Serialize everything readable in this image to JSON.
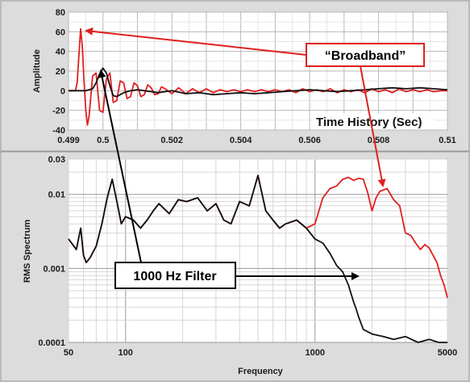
{
  "chart_data": [
    {
      "type": "line",
      "title": "Time History (Sec)",
      "xlabel": "",
      "ylabel": "Amplitude",
      "xlim": [
        0.499,
        0.51
      ],
      "ylim": [
        -40,
        80
      ],
      "xticks": [
        "0.499",
        "0.5",
        "0.502",
        "0.504",
        "0.506",
        "0.508",
        "0.51"
      ],
      "yticks": [
        "-40",
        "-20",
        "0",
        "20",
        "40",
        "60",
        "80"
      ],
      "grid": true,
      "series": [
        {
          "color": "#e02020",
          "x": [
            0.499,
            0.4992,
            0.49925,
            0.4993,
            0.49935,
            0.4994,
            0.49945,
            0.4995,
            0.49955,
            0.4996,
            0.4997,
            0.4998,
            0.4999,
            0.5,
            0.5001,
            0.5002,
            0.5003,
            0.5004,
            0.5005,
            0.5006,
            0.5007,
            0.5008,
            0.5009,
            0.501,
            0.5011,
            0.5012,
            0.5013,
            0.5014,
            0.5015,
            0.5016,
            0.5017,
            0.5018,
            0.502,
            0.5022,
            0.5024,
            0.5026,
            0.5028,
            0.503,
            0.5032,
            0.5034,
            0.5036,
            0.5038,
            0.504,
            0.5042,
            0.5044,
            0.5046,
            0.5048,
            0.505,
            0.5052,
            0.5054,
            0.5056,
            0.5058,
            0.506,
            0.5062,
            0.5064,
            0.5066,
            0.5068,
            0.507,
            0.5072,
            0.5074,
            0.5076,
            0.5078,
            0.508,
            0.5082,
            0.5084,
            0.5086,
            0.5088,
            0.509,
            0.5092,
            0.5094,
            0.5096,
            0.5098,
            0.51
          ],
          "y": [
            0,
            0,
            8,
            35,
            63,
            45,
            10,
            -20,
            -35,
            -25,
            15,
            18,
            -20,
            -22,
            12,
            18,
            -12,
            -10,
            10,
            8,
            -8,
            -6,
            8,
            5,
            -6,
            -4,
            6,
            3,
            -4,
            -3,
            4,
            2,
            -3,
            3,
            -3,
            2,
            -2,
            2,
            -2,
            1,
            -1,
            1,
            -1,
            1,
            -1,
            1,
            -1,
            1,
            -1,
            1,
            -2,
            2,
            -1,
            1,
            -1,
            2,
            -2,
            1,
            -1,
            1,
            -2,
            2,
            -1,
            1,
            -2,
            2,
            -1,
            1,
            -1,
            1,
            -1,
            0,
            0
          ]
        },
        {
          "color": "#111111",
          "x": [
            0.499,
            0.4995,
            0.4997,
            0.4998,
            0.4999,
            0.5,
            0.5001,
            0.5002,
            0.5003,
            0.5004,
            0.5005,
            0.5006,
            0.5008,
            0.501,
            0.5012,
            0.5014,
            0.5016,
            0.5018,
            0.502,
            0.5024,
            0.5028,
            0.5032,
            0.5036,
            0.504,
            0.5044,
            0.5048,
            0.5052,
            0.5056,
            0.506,
            0.5064,
            0.5068,
            0.5072,
            0.5076,
            0.508,
            0.5084,
            0.5088,
            0.5092,
            0.5096,
            0.51
          ],
          "y": [
            0,
            0,
            2,
            8,
            17,
            23,
            18,
            5,
            -5,
            -6,
            -4,
            -2,
            0,
            1,
            0,
            -1,
            -2,
            -1,
            0,
            -3,
            -2,
            -4,
            -3,
            -2,
            -3,
            -2,
            -1,
            0,
            1,
            0,
            -1,
            0,
            1,
            2,
            3,
            2,
            3,
            2,
            1
          ]
        }
      ]
    },
    {
      "type": "line",
      "title": "",
      "xlabel": "Frequency",
      "ylabel": "RMS Spectrum",
      "xscale": "log",
      "yscale": "log",
      "xlim": [
        50,
        5000
      ],
      "ylim": [
        0.0001,
        0.03
      ],
      "xticks": [
        "50",
        "100",
        "1000",
        "5000"
      ],
      "yticks": [
        "0.0001",
        "0.001",
        "0.01",
        "0.03"
      ],
      "grid": true,
      "series": [
        {
          "color": "#e02020",
          "x": [
            50,
            55,
            58,
            60,
            62,
            65,
            70,
            75,
            80,
            85,
            90,
            95,
            100,
            110,
            120,
            130,
            140,
            150,
            170,
            190,
            210,
            240,
            270,
            300,
            330,
            360,
            400,
            450,
            500,
            550,
            600,
            650,
            700,
            800,
            900,
            1000,
            1100,
            1200,
            1300,
            1400,
            1500,
            1600,
            1700,
            1800,
            1900,
            2000,
            2100,
            2200,
            2400,
            2600,
            2800,
            3000,
            3200,
            3400,
            3600,
            3800,
            4000,
            4200,
            4400,
            4600,
            4800,
            5000
          ],
          "y": [
            0.0025,
            0.0018,
            0.0035,
            0.0015,
            0.0012,
            0.0014,
            0.002,
            0.004,
            0.009,
            0.016,
            0.008,
            0.004,
            0.005,
            0.0045,
            0.0035,
            0.0045,
            0.006,
            0.0075,
            0.0055,
            0.0085,
            0.008,
            0.009,
            0.006,
            0.0075,
            0.0045,
            0.004,
            0.008,
            0.007,
            0.018,
            0.006,
            0.0045,
            0.0035,
            0.004,
            0.0045,
            0.0035,
            0.004,
            0.009,
            0.012,
            0.013,
            0.016,
            0.017,
            0.0155,
            0.0165,
            0.016,
            0.0105,
            0.006,
            0.009,
            0.011,
            0.012,
            0.0085,
            0.007,
            0.003,
            0.0028,
            0.0022,
            0.0018,
            0.0021,
            0.0019,
            0.0015,
            0.0012,
            0.0008,
            0.0006,
            0.0004
          ]
        },
        {
          "color": "#111111",
          "x": [
            50,
            55,
            58,
            60,
            62,
            65,
            70,
            75,
            80,
            85,
            90,
            95,
            100,
            110,
            120,
            130,
            140,
            150,
            170,
            190,
            210,
            240,
            270,
            300,
            330,
            360,
            400,
            450,
            500,
            550,
            600,
            650,
            700,
            800,
            900,
            1000,
            1100,
            1200,
            1300,
            1400,
            1500,
            1600,
            1650,
            1700,
            1750,
            1800,
            2000,
            2300,
            2600,
            3000,
            3500,
            4000,
            4500,
            5000
          ],
          "y": [
            0.0025,
            0.0018,
            0.0035,
            0.0015,
            0.0012,
            0.0014,
            0.002,
            0.004,
            0.009,
            0.016,
            0.008,
            0.004,
            0.005,
            0.0045,
            0.0035,
            0.0045,
            0.006,
            0.0075,
            0.0055,
            0.0085,
            0.008,
            0.009,
            0.006,
            0.0075,
            0.0045,
            0.004,
            0.008,
            0.007,
            0.018,
            0.006,
            0.0045,
            0.0035,
            0.004,
            0.0045,
            0.0035,
            0.0025,
            0.0022,
            0.0016,
            0.0011,
            0.0009,
            0.0006,
            0.00035,
            0.00028,
            0.00022,
            0.00018,
            0.00015,
            0.00013,
            0.00012,
            0.00011,
            0.00012,
            0.0001,
            0.00011,
            0.0001,
            0.0001
          ]
        }
      ]
    }
  ],
  "callouts": {
    "broadband": "“Broadband”",
    "filter": "1000 Hz Filter"
  }
}
